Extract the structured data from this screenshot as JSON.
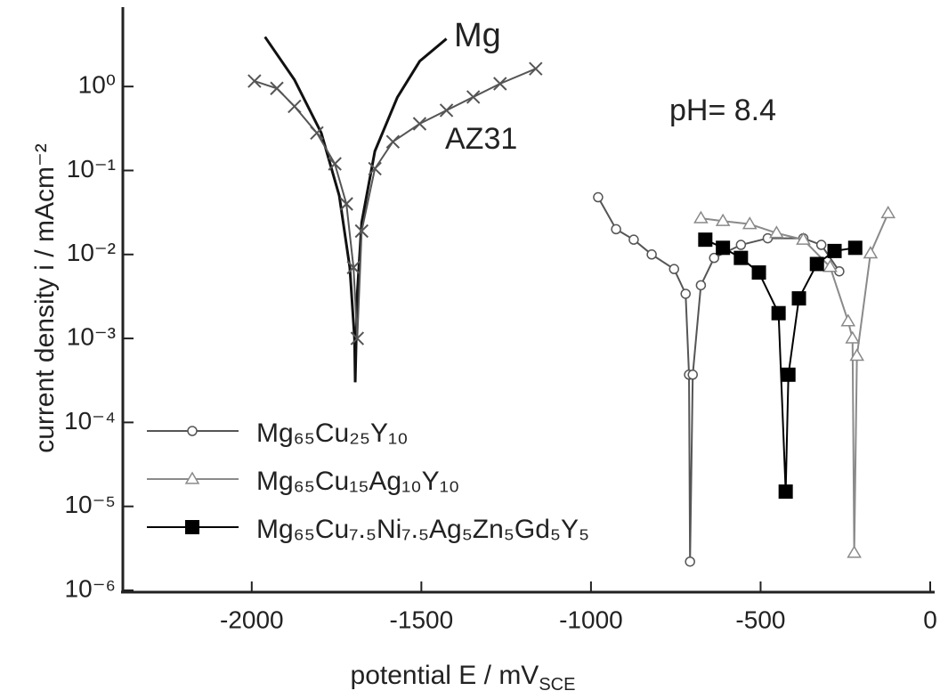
{
  "chart_data": {
    "type": "line",
    "x_label": "potential E / mV",
    "x_label_sub": "SCE",
    "y_label": "current density  i / mAcm⁻²",
    "annotations": [
      "pH= 8.4"
    ],
    "xlim": [
      -2380,
      0
    ],
    "xticks": [
      -2000,
      -1500,
      -1000,
      -500,
      0
    ],
    "ylim": [
      1e-06,
      8
    ],
    "y_log": true,
    "yticks": [
      {
        "value": 1,
        "label": "10⁰"
      },
      {
        "value": 0.1,
        "label": "10⁻¹"
      },
      {
        "value": 0.01,
        "label": "10⁻²"
      },
      {
        "value": 0.001,
        "label": "10⁻³"
      },
      {
        "value": 0.0001,
        "label": "10⁻⁴"
      },
      {
        "value": 1e-05,
        "label": "10⁻⁵"
      },
      {
        "value": 1e-06,
        "label": "10⁻⁶"
      }
    ],
    "series": [
      {
        "name": "Mg",
        "color": "#111111",
        "marker": "none",
        "label_style": "inline",
        "x": [
          -1961,
          -1874,
          -1795,
          -1742,
          -1711,
          -1697,
          -1695,
          -1689,
          -1676,
          -1637,
          -1571,
          -1505,
          -1426
        ],
        "values": [
          3.9,
          1.2,
          0.28,
          0.05,
          0.007,
          0.001,
          0.0003,
          0.0034,
          0.024,
          0.17,
          0.74,
          2,
          3.7
        ]
      },
      {
        "name": "AZ31",
        "color": "#555555",
        "marker": "x",
        "label_style": "inline",
        "x": [
          -1992,
          -1926,
          -1874,
          -1808,
          -1755,
          -1721,
          -1700,
          -1689,
          -1676,
          -1637,
          -1584,
          -1505,
          -1426,
          -1347,
          -1268,
          -1163
        ],
        "values": [
          1.16,
          0.95,
          0.58,
          0.28,
          0.12,
          0.04,
          0.007,
          0.001,
          0.019,
          0.105,
          0.22,
          0.36,
          0.52,
          0.75,
          1.08,
          1.63
        ]
      },
      {
        "name": "Mg₆₅Cu₂₅Y₁₀",
        "color": "#555555",
        "marker": "circle",
        "label_style": "legend",
        "x": [
          -979,
          -926,
          -874,
          -821,
          -755,
          -721,
          -711,
          -708,
          -700,
          -676,
          -637,
          -558,
          -479,
          -374,
          -321,
          -268
        ],
        "values": [
          0.048,
          0.02,
          0.015,
          0.01,
          0.0067,
          0.0034,
          0.00037,
          2.2e-06,
          0.00037,
          0.0043,
          0.0091,
          0.013,
          0.0156,
          0.0156,
          0.013,
          0.0063
        ]
      },
      {
        "name": "Mg₆₅Cu₁₅Ag₁₀Y₁₀",
        "color": "#8a8a8a",
        "marker": "triangle",
        "label_style": "legend",
        "x": [
          -676,
          -611,
          -532,
          -453,
          -374,
          -295,
          -242,
          -229,
          -224,
          -216,
          -176,
          -124
        ],
        "values": [
          0.027,
          0.025,
          0.023,
          0.018,
          0.015,
          0.0071,
          0.0016,
          0.001,
          2.8e-06,
          0.00062,
          0.0103,
          0.031
        ]
      },
      {
        "name": "Mg₆₅Cu₇.₅Ni₇.₅Ag₅Zn₅Gd₅Y₅",
        "color": "#000000",
        "marker": "square",
        "label_style": "legend",
        "x": [
          -663,
          -611,
          -558,
          -505,
          -447,
          -426,
          -418,
          -387,
          -334,
          -282,
          -221
        ],
        "values": [
          0.015,
          0.012,
          0.0091,
          0.0061,
          0.002,
          1.5e-05,
          0.00037,
          0.003,
          0.0077,
          0.011,
          0.012
        ]
      }
    ]
  }
}
